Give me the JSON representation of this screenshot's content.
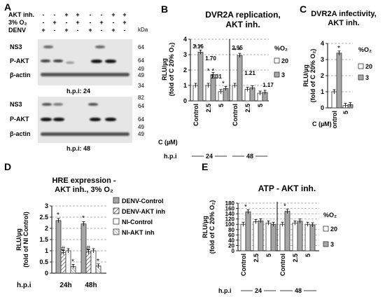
{
  "panels": {
    "A": {
      "label": "A",
      "rows": [
        "AKT inh.",
        "3% O₂",
        "DENV"
      ],
      "signs": [
        [
          "-",
          "-",
          "+",
          "+",
          "-",
          "-",
          "+",
          "+"
        ],
        [
          "-",
          "+",
          "-",
          "+",
          "-",
          "+",
          "-",
          "+"
        ],
        [
          "+",
          "-",
          "+",
          "-",
          "+",
          "-",
          "+",
          "-"
        ]
      ],
      "kda_label": "kDa",
      "blot1": {
        "rows": [
          "NS3",
          "P-AKT",
          "β-actin"
        ],
        "markers": [
          "64",
          "64",
          "49",
          "49",
          "34"
        ],
        "hpi": "h.p.i: 24"
      },
      "blot2": {
        "rows": [
          "NS3",
          "P-AKT",
          "β-actin"
        ],
        "markers": [
          "82",
          "64",
          "64",
          "49",
          "49"
        ],
        "hpi": "h.p.i: 48"
      }
    },
    "B": {
      "label": "B",
      "title_line1": "DVR2A replication,",
      "title_line2": "AKT inh."
    },
    "C": {
      "label": "C",
      "title_line1": "DVR2A infectivity,",
      "title_line2": "AKT inh."
    },
    "D": {
      "label": "D",
      "title_line1": "HRE expression -",
      "title_line2": "AKT inh., 3% O₂"
    },
    "E": {
      "label": "E",
      "title_line1": "ATP - AKT inh."
    }
  },
  "chart_data": [
    {
      "panel": "B",
      "type": "bar",
      "ylabel_line1": "RLU/µg",
      "ylabel_line2": "(fold of C 20% O₂)",
      "ylim": [
        0,
        4
      ],
      "yticks": [
        "0",
        "1",
        "2",
        "3",
        "4"
      ],
      "legend_title": "%O₂",
      "categories": [
        "Control",
        "2.5",
        "5",
        "Control",
        "2.5",
        "5"
      ],
      "xlabel": "C (µM)",
      "groups_label": "h.p.i",
      "groups": [
        "24",
        "48"
      ],
      "series": [
        {
          "name": "20",
          "color": "#ffffff",
          "values": [
            1.0,
            1.0,
            0.6,
            1.0,
            0.75,
            0.5
          ]
        },
        {
          "name": "3",
          "color": "#a6a6a6",
          "values": [
            3.16,
            1.7,
            0.8,
            2.95,
            0.85,
            0.55
          ]
        }
      ],
      "annotations": [
        "3.16",
        "1.70",
        "1.31",
        "2.95",
        "1.21",
        "1.17"
      ]
    },
    {
      "panel": "C",
      "type": "bar",
      "ylabel_line1": "RLU/µg",
      "ylabel_line2": "(fold of C 20% O₂)",
      "ylim": [
        0,
        4
      ],
      "yticks": [
        "0",
        "1",
        "2",
        "3",
        "4"
      ],
      "legend_title": "%O₂",
      "categories": [
        "Control",
        "5"
      ],
      "xlabel": "C (µM)",
      "series": [
        {
          "name": "20",
          "color": "#ffffff",
          "values": [
            1.0,
            0.15
          ]
        },
        {
          "name": "3",
          "color": "#a6a6a6",
          "values": [
            3.4,
            0.2
          ]
        }
      ]
    },
    {
      "panel": "D",
      "type": "bar",
      "ylabel_line1": "RLU/µg",
      "ylabel_line2": "(fold of NI Control)",
      "ylim": [
        0,
        3
      ],
      "yticks": [
        "0",
        "0.5",
        "1",
        "1.5",
        "2",
        "2.5",
        "3"
      ],
      "groups_label": "h.p.i",
      "categories": [
        "24h",
        "48h"
      ],
      "series": [
        {
          "name": "DENV-Control",
          "values": [
            2.35,
            2.2
          ]
        },
        {
          "name": "DENV-AKT inh",
          "values": [
            0.92,
            0.95
          ]
        },
        {
          "name": "NI-Control",
          "values": [
            1.0,
            1.0
          ]
        },
        {
          "name": "NI-AKT inh",
          "values": [
            0.3,
            0.32
          ]
        }
      ]
    },
    {
      "panel": "E",
      "type": "bar",
      "ylabel_line1": "RLU/µg",
      "ylabel_line2": "(fold of C 20% O₂)",
      "ylim": [
        0,
        180
      ],
      "yticks": [
        "0",
        "20",
        "40",
        "60",
        "80",
        "100",
        "120",
        "140",
        "160",
        "180"
      ],
      "legend_title": "%O₂",
      "categories": [
        "Control",
        "2.5",
        "5",
        "Control",
        "2.5",
        "5"
      ],
      "groups_label": "h.p.i",
      "groups": [
        "24",
        "48"
      ],
      "series": [
        {
          "name": "20",
          "color": "#ffffff",
          "values": [
            100,
            110,
            105,
            100,
            105,
            100
          ]
        },
        {
          "name": "3",
          "color": "#a6a6a6",
          "values": [
            147,
            113,
            100,
            149,
            112,
            98
          ]
        }
      ]
    }
  ]
}
